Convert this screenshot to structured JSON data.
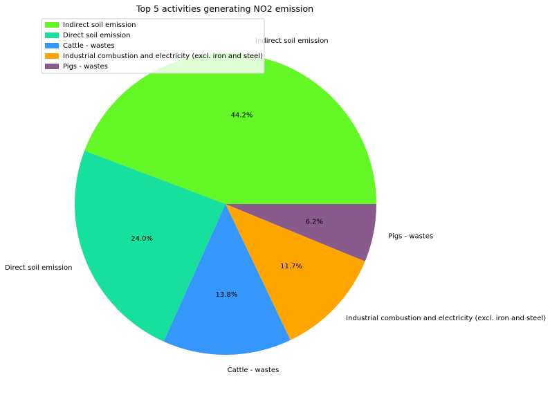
{
  "chart_data": {
    "type": "pie",
    "title": "Top 5 activities generating NO2 emission",
    "labels": [
      "Indirect soil emission",
      "Direct soil emission",
      "Cattle - wastes",
      "Industrial combustion and electricity (excl. iron and steel)",
      "Pigs - wastes"
    ],
    "values": [
      44.2,
      24.0,
      13.8,
      11.7,
      6.2
    ],
    "pct_labels": [
      "44.2%",
      "24.0%",
      "13.8%",
      "11.7%",
      "6.2%"
    ],
    "colors": [
      "#62f725",
      "#17e09e",
      "#3597fb",
      "#fea500",
      "#895a8c"
    ],
    "start_angle_deg": 0,
    "direction": "counterclockwise",
    "legend_position": "top-left"
  }
}
